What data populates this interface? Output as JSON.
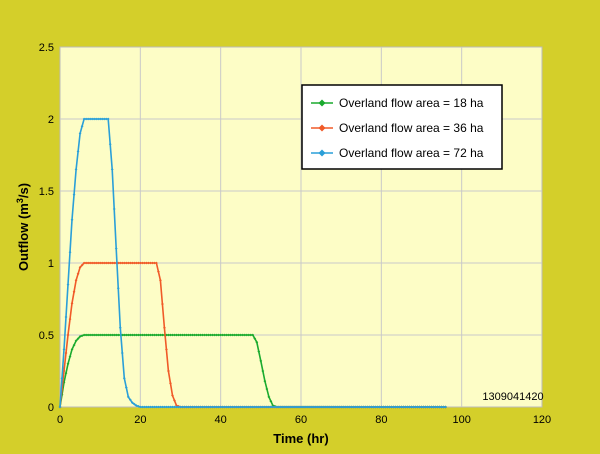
{
  "colors": {
    "background": "#d4cf2a",
    "plot_area": "#fdfdc6",
    "grid": "#c9c9c9"
  },
  "figure_id": "1309041420",
  "chart_data": {
    "type": "line",
    "title": "",
    "xlabel": "Time (hr)",
    "ylabel_main": "Outflow (m",
    "ylabel_sup": "3",
    "ylabel_tail": "/s)",
    "xlim": [
      0,
      120
    ],
    "ylim": [
      0,
      2.5
    ],
    "xticks": [
      0,
      20,
      40,
      60,
      80,
      100,
      120
    ],
    "yticks": [
      0,
      0.5,
      1,
      1.5,
      2,
      2.5
    ],
    "xtick_labels": [
      "0",
      "20",
      "40",
      "60",
      "80",
      "100",
      "120"
    ],
    "ytick_labels": [
      "0",
      "0.5",
      "1",
      "1.5",
      "2",
      "2.5"
    ],
    "grid": true,
    "legend_position": "top-right",
    "marker": "diamond",
    "series": [
      {
        "name": "Overland flow area = 18 ha",
        "color": "#1aaa2e",
        "x": [
          0,
          1,
          2,
          3,
          4,
          5,
          6,
          48,
          49,
          50,
          51,
          52,
          53,
          54,
          96
        ],
        "y": [
          0,
          0.17,
          0.3,
          0.4,
          0.46,
          0.49,
          0.5,
          0.5,
          0.45,
          0.32,
          0.18,
          0.07,
          0.01,
          0,
          0
        ]
      },
      {
        "name": "Overland flow area = 36 ha",
        "color": "#f05a28",
        "x": [
          0,
          1,
          2,
          3,
          4,
          5,
          6,
          7,
          24,
          25,
          26,
          27,
          28,
          29,
          30,
          96
        ],
        "y": [
          0,
          0.25,
          0.5,
          0.72,
          0.88,
          0.97,
          1.0,
          1.0,
          1.0,
          0.88,
          0.55,
          0.25,
          0.08,
          0.01,
          0,
          0
        ]
      },
      {
        "name": "Overland flow area = 72 ha",
        "color": "#2a9fd8",
        "x": [
          0,
          1,
          2,
          3,
          4,
          5,
          6,
          7,
          12,
          13,
          14,
          15,
          16,
          17,
          18,
          19,
          20,
          96
        ],
        "y": [
          0,
          0.4,
          0.85,
          1.3,
          1.65,
          1.9,
          2.0,
          2.0,
          2.0,
          1.65,
          1.1,
          0.55,
          0.2,
          0.07,
          0.03,
          0.01,
          0,
          0
        ]
      }
    ]
  }
}
